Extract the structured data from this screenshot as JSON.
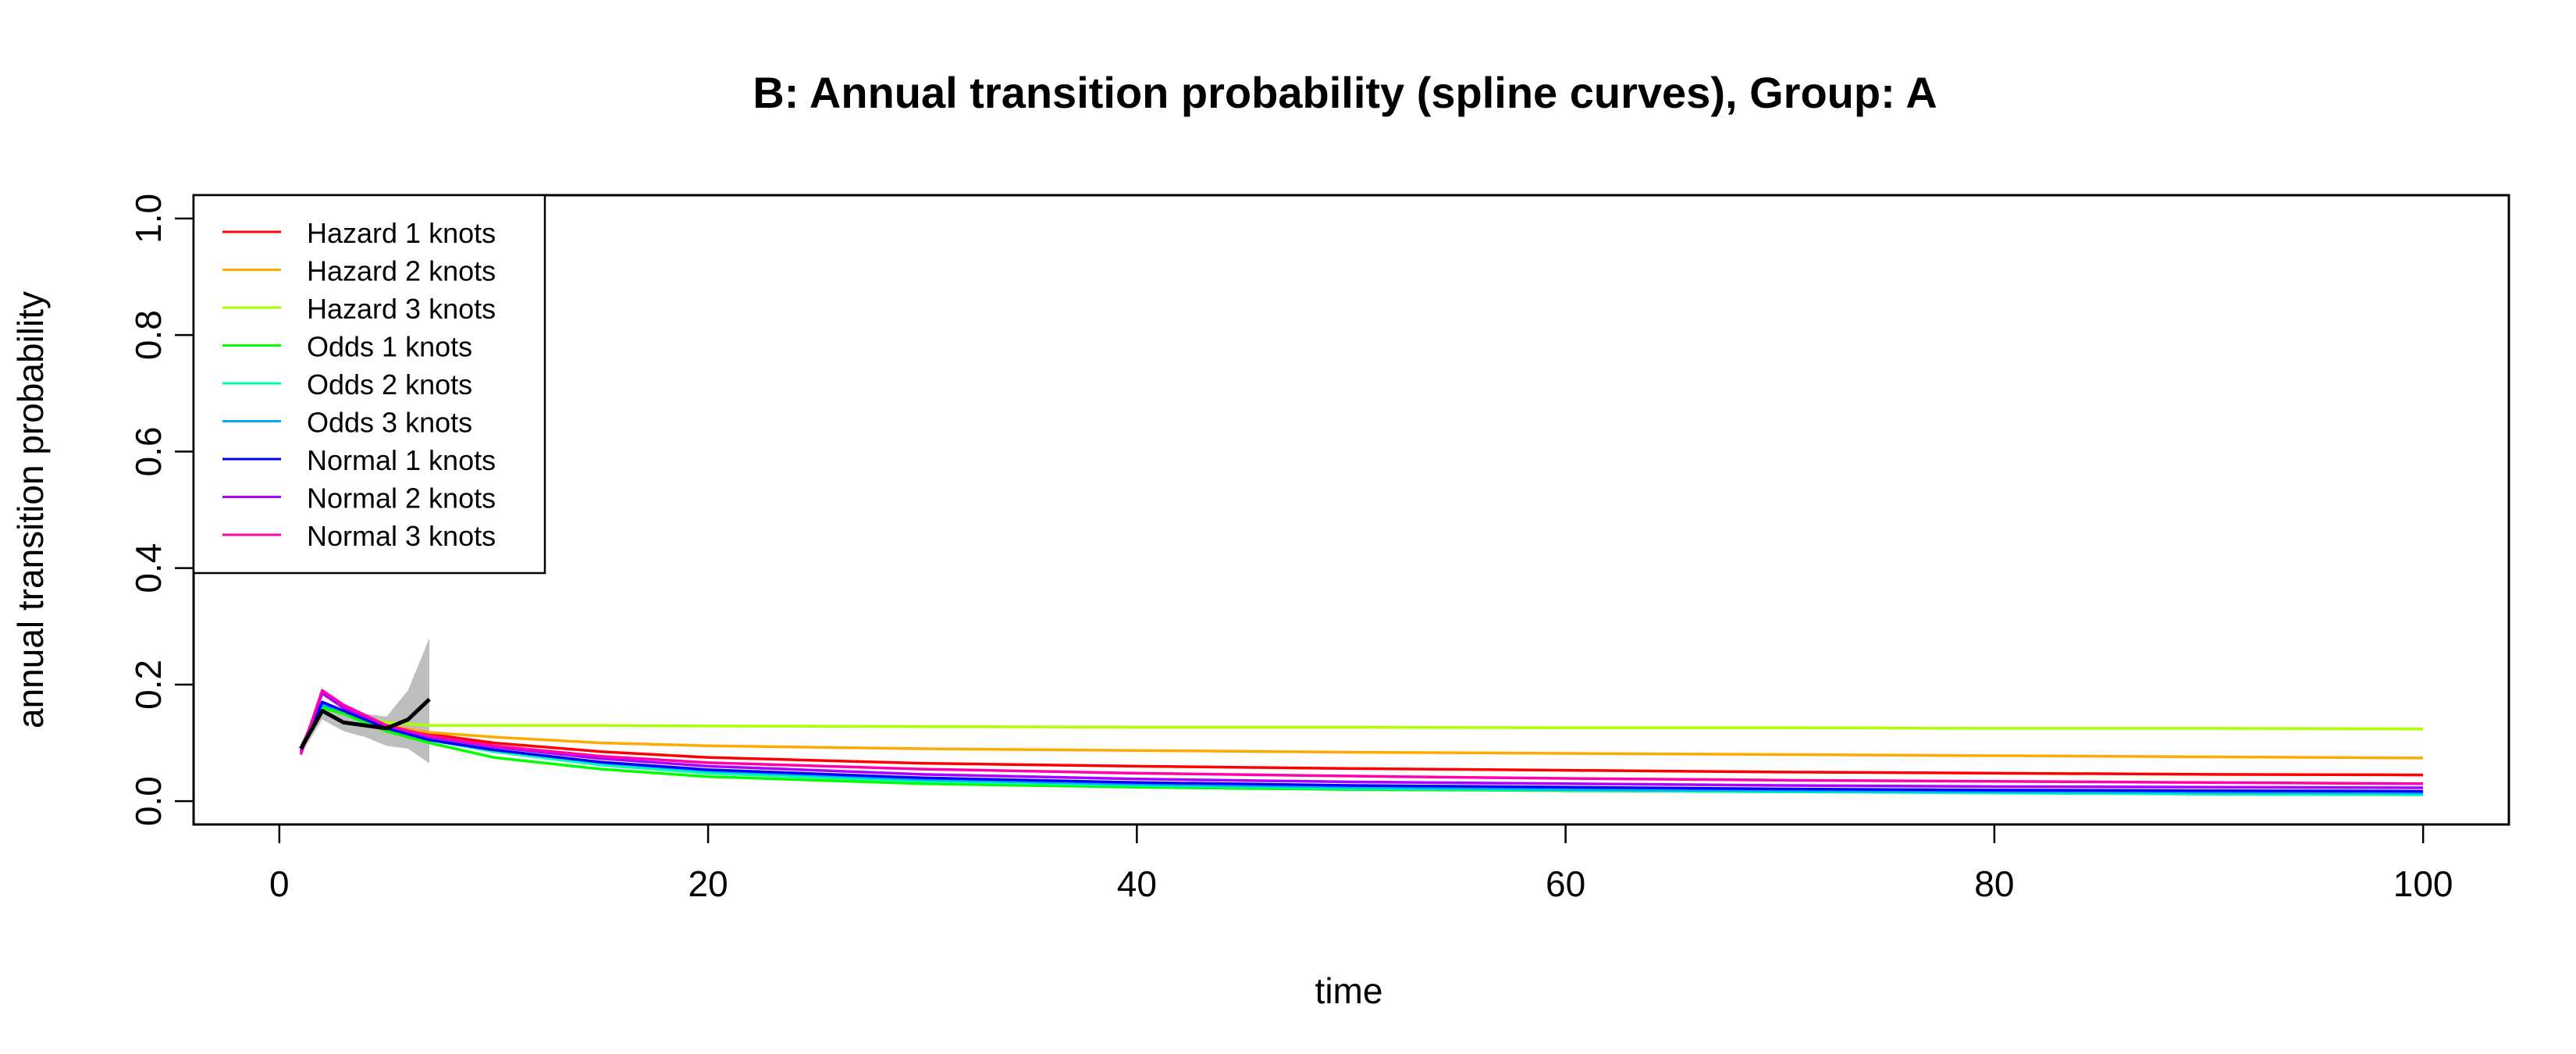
{
  "chart_data": {
    "type": "line",
    "title": "B: Annual transition probability (spline curves), Group: A",
    "xlabel": "time",
    "ylabel": "annual transition probability",
    "xlim": [
      -4,
      104
    ],
    "ylim": [
      -0.04,
      1.04
    ],
    "xticks": [
      0,
      20,
      40,
      60,
      80,
      100
    ],
    "yticks": [
      0.0,
      0.2,
      0.4,
      0.6,
      0.8,
      1.0
    ],
    "xtick_labels": [
      "0",
      "20",
      "40",
      "60",
      "80",
      "100"
    ],
    "ytick_labels": [
      "0.0",
      "0.2",
      "0.4",
      "0.6",
      "0.8",
      "1.0"
    ],
    "grid": false,
    "legend": "top-left",
    "observed": {
      "x": [
        1,
        2,
        3,
        4,
        5,
        6,
        7
      ],
      "y": [
        0.09,
        0.155,
        0.135,
        0.13,
        0.125,
        0.14,
        0.175
      ],
      "lower": [
        0.08,
        0.14,
        0.12,
        0.11,
        0.095,
        0.09,
        0.065
      ],
      "upper": [
        0.1,
        0.17,
        0.15,
        0.15,
        0.145,
        0.19,
        0.28
      ],
      "color": "#000000",
      "band_color": "#bebebe"
    },
    "series": [
      {
        "name": "Hazard 1 knots",
        "color": "#FF0000",
        "x": [
          1,
          2,
          3,
          5,
          7,
          10,
          15,
          20,
          30,
          40,
          50,
          60,
          70,
          80,
          90,
          100
        ],
        "y": [
          0.09,
          0.17,
          0.155,
          0.13,
          0.115,
          0.1,
          0.085,
          0.075,
          0.065,
          0.06,
          0.056,
          0.053,
          0.05,
          0.048,
          0.046,
          0.045
        ]
      },
      {
        "name": "Hazard 2 knots",
        "color": "#FFAA00",
        "x": [
          1,
          2,
          3,
          5,
          7,
          10,
          15,
          20,
          30,
          40,
          50,
          60,
          70,
          80,
          90,
          100
        ],
        "y": [
          0.09,
          0.165,
          0.15,
          0.13,
          0.118,
          0.11,
          0.1,
          0.095,
          0.09,
          0.087,
          0.084,
          0.082,
          0.08,
          0.078,
          0.076,
          0.074
        ]
      },
      {
        "name": "Hazard 3 knots",
        "color": "#AAFF00",
        "x": [
          1,
          2,
          3,
          5,
          7,
          10,
          15,
          20,
          30,
          40,
          50,
          60,
          70,
          80,
          90,
          100
        ],
        "y": [
          0.09,
          0.16,
          0.15,
          0.135,
          0.13,
          0.13,
          0.13,
          0.129,
          0.128,
          0.127,
          0.127,
          0.126,
          0.126,
          0.125,
          0.125,
          0.124
        ]
      },
      {
        "name": "Odds 1 knots",
        "color": "#00FF00",
        "x": [
          1,
          2,
          3,
          5,
          7,
          10,
          15,
          20,
          30,
          40,
          50,
          60,
          70,
          80,
          90,
          100
        ],
        "y": [
          0.085,
          0.16,
          0.15,
          0.12,
          0.1,
          0.075,
          0.055,
          0.042,
          0.03,
          0.024,
          0.02,
          0.018,
          0.016,
          0.015,
          0.014,
          0.013
        ]
      },
      {
        "name": "Odds 2 knots",
        "color": "#00FFAA",
        "x": [
          1,
          2,
          3,
          5,
          7,
          10,
          15,
          20,
          30,
          40,
          50,
          60,
          70,
          80,
          90,
          100
        ],
        "y": [
          0.085,
          0.165,
          0.155,
          0.125,
          0.105,
          0.085,
          0.062,
          0.048,
          0.034,
          0.027,
          0.022,
          0.019,
          0.016,
          0.014,
          0.012,
          0.011
        ]
      },
      {
        "name": "Odds 3 knots",
        "color": "#00AAFF",
        "x": [
          1,
          2,
          3,
          5,
          7,
          10,
          15,
          20,
          30,
          40,
          50,
          60,
          70,
          80,
          90,
          100
        ],
        "y": [
          0.085,
          0.165,
          0.155,
          0.125,
          0.105,
          0.088,
          0.066,
          0.052,
          0.037,
          0.029,
          0.024,
          0.02,
          0.018,
          0.016,
          0.015,
          0.014
        ]
      },
      {
        "name": "Normal 1 knots",
        "color": "#0000FF",
        "x": [
          1,
          2,
          3,
          5,
          7,
          10,
          15,
          20,
          30,
          40,
          50,
          60,
          70,
          80,
          90,
          100
        ],
        "y": [
          0.085,
          0.17,
          0.155,
          0.125,
          0.105,
          0.088,
          0.067,
          0.054,
          0.04,
          0.032,
          0.027,
          0.024,
          0.021,
          0.019,
          0.018,
          0.017
        ]
      },
      {
        "name": "Normal 2 knots",
        "color": "#AA00FF",
        "x": [
          1,
          2,
          3,
          5,
          7,
          10,
          15,
          20,
          30,
          40,
          50,
          60,
          70,
          80,
          90,
          100
        ],
        "y": [
          0.085,
          0.185,
          0.16,
          0.13,
          0.11,
          0.093,
          0.073,
          0.06,
          0.046,
          0.038,
          0.033,
          0.03,
          0.027,
          0.025,
          0.024,
          0.023
        ]
      },
      {
        "name": "Normal 3 knots",
        "color": "#FF00AA",
        "x": [
          1,
          2,
          3,
          5,
          7,
          10,
          15,
          20,
          30,
          40,
          50,
          60,
          70,
          80,
          90,
          100
        ],
        "y": [
          0.08,
          0.19,
          0.165,
          0.13,
          0.112,
          0.095,
          0.077,
          0.066,
          0.055,
          0.048,
          0.043,
          0.039,
          0.036,
          0.034,
          0.032,
          0.03
        ]
      }
    ]
  }
}
